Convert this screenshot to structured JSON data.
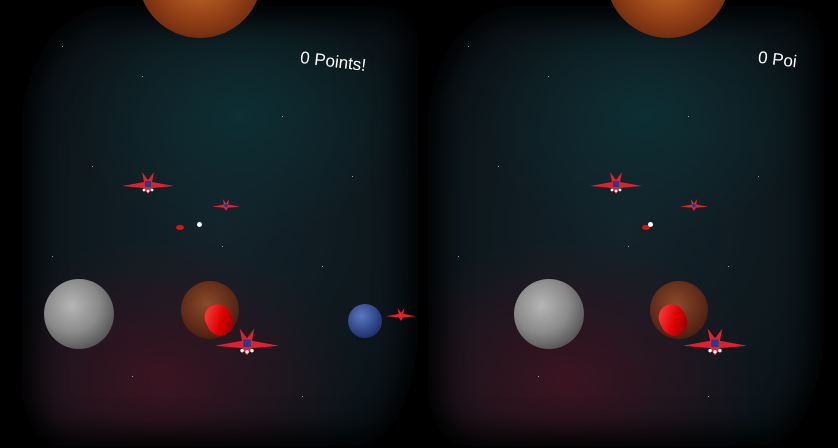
{
  "hud": {
    "score_left": "0 Points!",
    "score_right": "0 Poi"
  },
  "colors": {
    "ship": "#e0202e",
    "bullet": "#e01010",
    "background": "#0a1216"
  }
}
